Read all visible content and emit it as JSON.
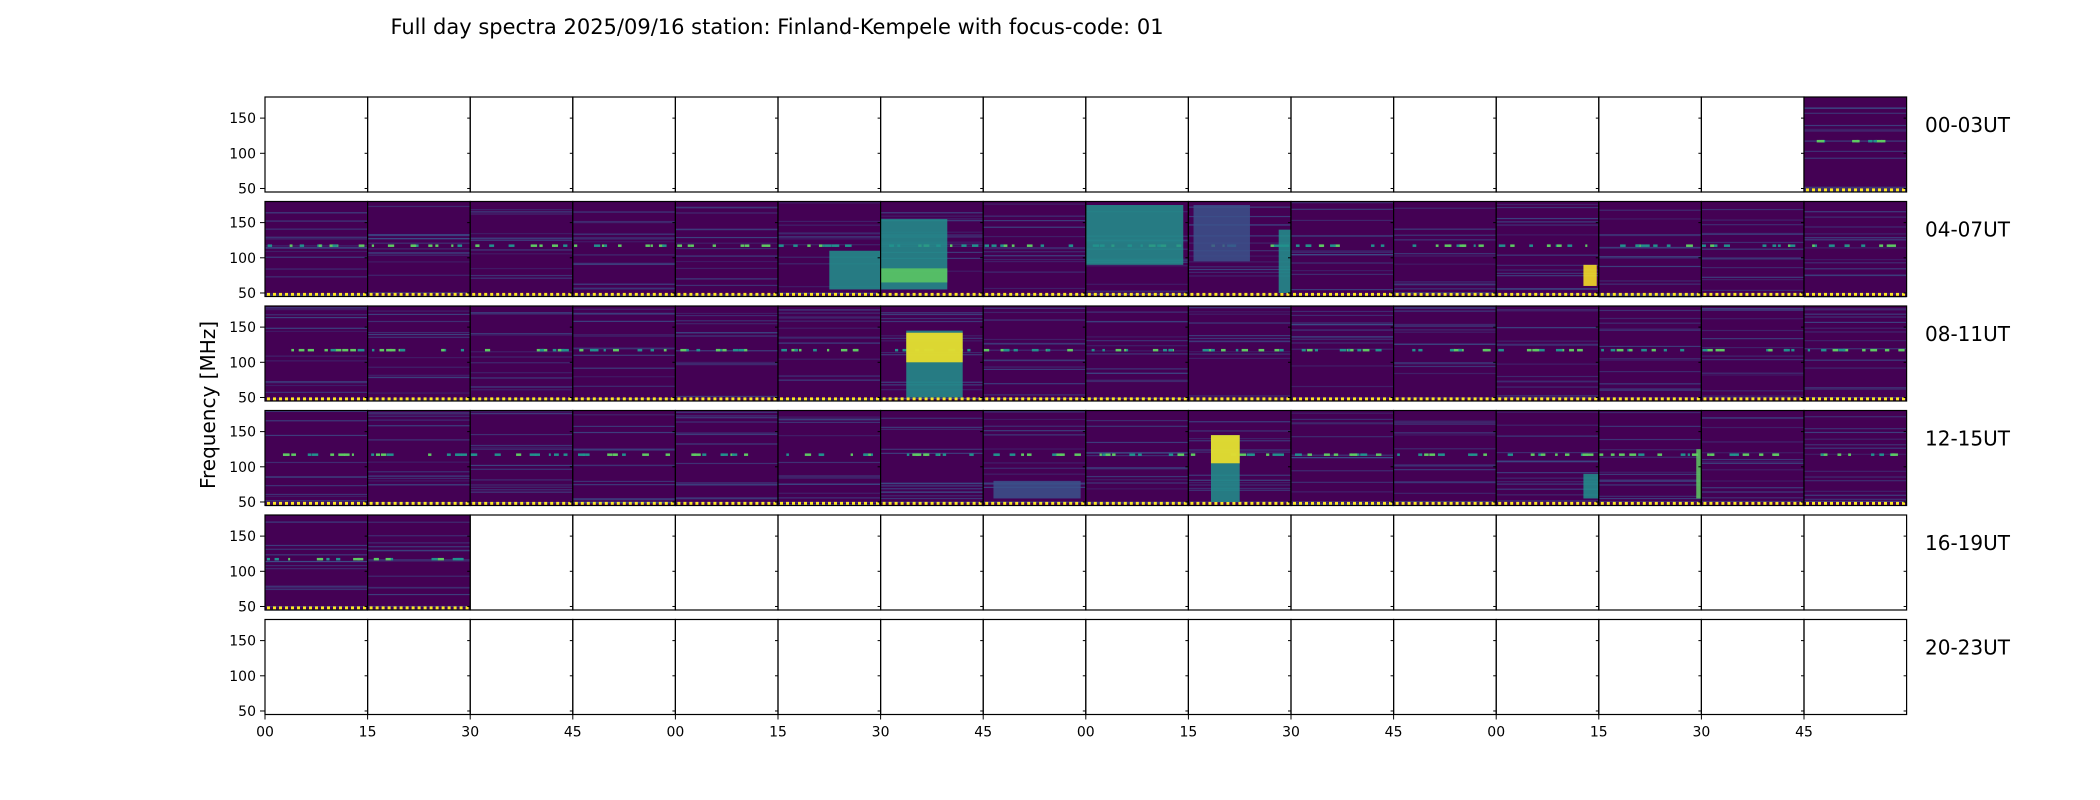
{
  "title": "Full day spectra 2025/09/16 station: Finland-Kempele with focus-code: 01",
  "ylabel": "Frequency [MHz]",
  "y_ticks": [
    "150",
    "100",
    "50"
  ],
  "x_ticks": [
    "00",
    "15",
    "30",
    "45",
    "00",
    "15",
    "30",
    "45",
    "00",
    "15",
    "30",
    "45",
    "00",
    "15",
    "30",
    "45"
  ],
  "colors": {
    "background": "#440154",
    "band": "#3b528b",
    "mid": "#21918c",
    "bright": "#5ec962",
    "peak": "#fde725"
  },
  "chart_data": {
    "type": "heatmap",
    "title": "Full day spectra 2025/09/16 station: Finland-Kempele with focus-code: 01",
    "ylabel": "Frequency [MHz]",
    "ylim": [
      45,
      180
    ],
    "panels_per_row": 16,
    "rows": [
      {
        "label": "00-03UT",
        "filled": [
          15
        ]
      },
      {
        "label": "04-07UT",
        "filled": [
          0,
          1,
          2,
          3,
          4,
          5,
          6,
          7,
          8,
          9,
          10,
          11,
          12,
          13,
          14,
          15
        ]
      },
      {
        "label": "08-11UT",
        "filled": [
          0,
          1,
          2,
          3,
          4,
          5,
          6,
          7,
          8,
          9,
          10,
          11,
          12,
          13,
          14,
          15
        ]
      },
      {
        "label": "12-15UT",
        "filled": [
          0,
          1,
          2,
          3,
          4,
          5,
          6,
          7,
          8,
          9,
          10,
          11,
          12,
          13,
          14,
          15
        ]
      },
      {
        "label": "16-19UT",
        "filled": [
          0,
          1
        ]
      },
      {
        "label": "20-23UT",
        "filled": []
      }
    ],
    "x_tick_labels": [
      "00",
      "15",
      "30",
      "45",
      "00",
      "15",
      "30",
      "45",
      "00",
      "15",
      "30",
      "45",
      "00",
      "15",
      "30",
      "45"
    ],
    "y_tick_values": [
      150,
      100,
      50
    ],
    "colormap": "viridis"
  }
}
